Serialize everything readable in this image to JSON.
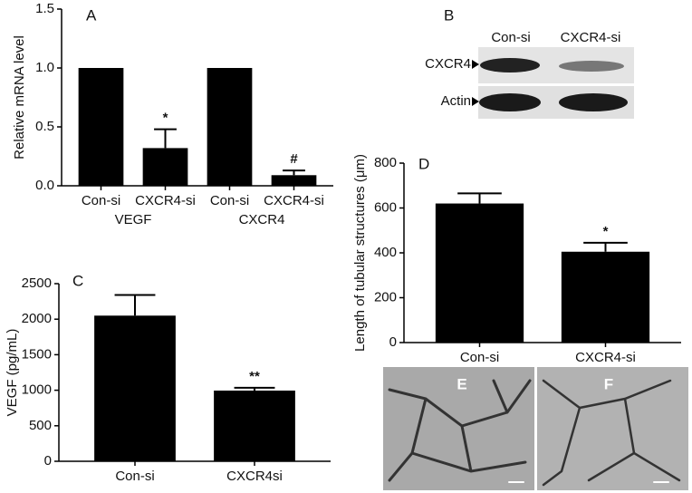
{
  "chart_data": [
    {
      "type": "bar",
      "panel": "A",
      "y_label": "Relative mRNA level",
      "categories": [
        "Con-si",
        "CXCR4-si",
        "Con-si",
        "CXCR4-si"
      ],
      "groups": [
        "VEGF",
        "CXCR4"
      ],
      "values": [
        1,
        0.32,
        1,
        0.09
      ],
      "errors": [
        null,
        0.16,
        null,
        0.04
      ],
      "annotations": [
        null,
        "*",
        null,
        "#"
      ],
      "color": "#000000",
      "ylim": [
        0,
        1.5
      ],
      "yticks": [
        {
          "value": 0,
          "label": "0.0"
        },
        0.5,
        {
          "value": 1,
          "label": "1.0"
        },
        1.5
      ]
    },
    {
      "type": "bar",
      "panel": "C",
      "y_label": "VEGF (pg/mL)",
      "categories": [
        "Con-si",
        "CXCR4si"
      ],
      "values": [
        2050,
        995
      ],
      "errors": [
        290,
        40
      ],
      "annotations": [
        null,
        "**"
      ],
      "color": "#000000",
      "ylim": [
        0,
        2500
      ],
      "yticks": [
        0,
        500,
        1000,
        1500,
        2000,
        2500
      ]
    },
    {
      "type": "bar",
      "panel": "D",
      "y_label": "Length of tubular structures (μm)",
      "categories": [
        "Con-si",
        "CXCR4-si"
      ],
      "values": [
        620,
        405
      ],
      "errors": [
        45,
        40
      ],
      "annotations": [
        null,
        "*"
      ],
      "color": "#000000",
      "ylim": [
        0,
        800
      ],
      "yticks": [
        0,
        200,
        400,
        600,
        800
      ]
    }
  ],
  "blot": {
    "panel": "B",
    "lanes": [
      "Con-si",
      "CXCR4-si"
    ],
    "rows": [
      "CXCR4",
      "Actin"
    ]
  },
  "micrographs": [
    "E",
    "F"
  ]
}
